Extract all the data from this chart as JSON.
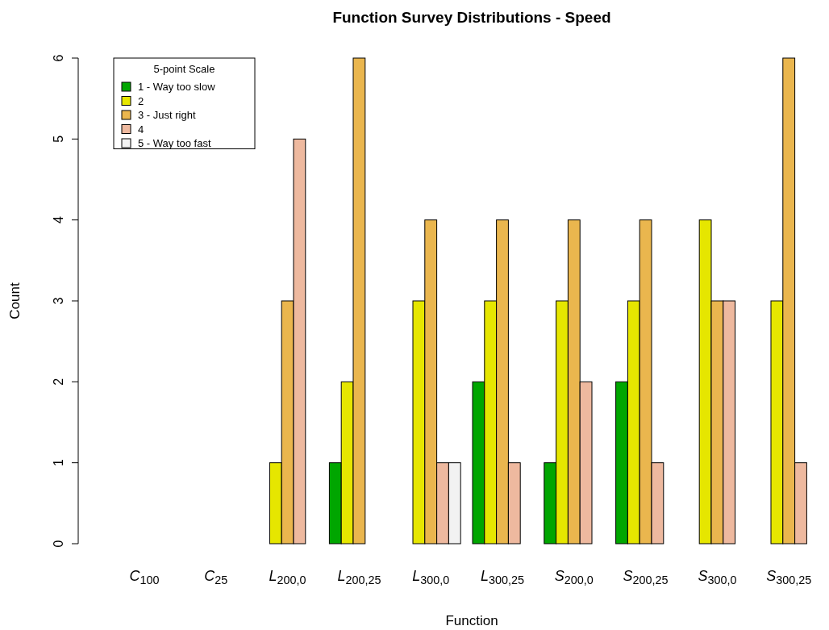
{
  "chart_data": {
    "type": "bar",
    "title": "Function Survey Distributions - Speed",
    "xlabel": "Function",
    "ylabel": "Count",
    "legend_title": "5-point Scale",
    "legend": "top left",
    "grid": false,
    "categories": [
      "C$_{100}$",
      "C$_{25}$",
      "L$_{200,0}$",
      "L$_{200,25}$",
      "L$_{300,0}$",
      "L$_{300,25}$",
      "S$_{200,0}$",
      "S$_{200,25}$",
      "S$_{300,0}$",
      "S$_{300,25}$"
    ],
    "ylim": [
      0,
      6
    ],
    "yticks": [
      0,
      1,
      2,
      3,
      4,
      5,
      6
    ],
    "series": [
      {
        "name": "1 - Way too slow",
        "color": "#00a600",
        "values": [
          0,
          0,
          0,
          1,
          0,
          2,
          1,
          2,
          0,
          0
        ]
      },
      {
        "name": "2",
        "color": "#e6e600",
        "values": [
          0,
          0,
          1,
          2,
          3,
          3,
          3,
          3,
          4,
          3
        ]
      },
      {
        "name": "3 - Just right",
        "color": "#eab64e",
        "values": [
          0,
          0,
          3,
          6,
          4,
          4,
          4,
          4,
          3,
          6
        ]
      },
      {
        "name": "4",
        "color": "#eeb99f",
        "values": [
          0,
          0,
          5,
          0,
          1,
          1,
          2,
          1,
          3,
          1
        ]
      },
      {
        "name": "5 - Way too fast",
        "color": "#f2f2f2",
        "values": [
          0,
          0,
          0,
          0,
          1,
          0,
          0,
          0,
          0,
          0
        ]
      }
    ]
  }
}
